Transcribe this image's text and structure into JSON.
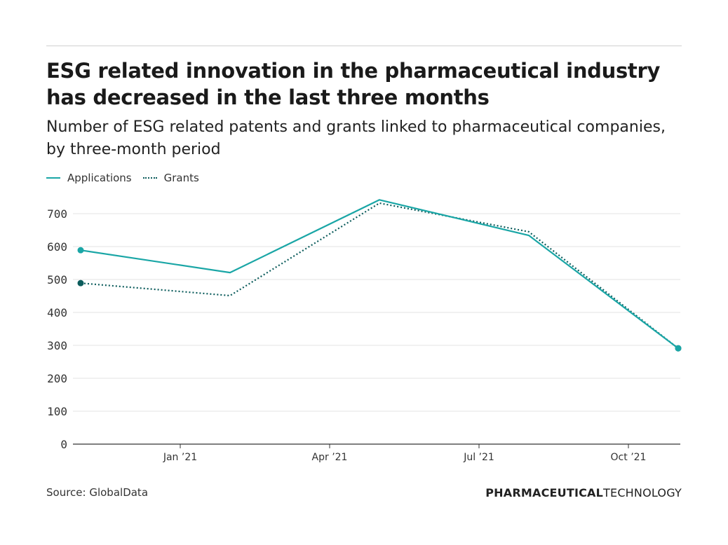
{
  "header": {
    "title": "ESG related innovation in the pharmaceutical industry has decreased in the last three months",
    "subtitle": "Number of ESG related patents and grants linked to pharmaceutical companies, by three-month period"
  },
  "footer": {
    "source": "Source: GlobalData",
    "logo_bold": "PHARMACEUTICAL",
    "logo_light": "TECHNOLOGY"
  },
  "chart_data": {
    "type": "line",
    "title": "ESG related innovation in the pharmaceutical industry has decreased in the last three months",
    "subtitle": "Number of ESG related patents and grants linked to pharmaceutical companies, by three-month period",
    "x": [
      "2020-11",
      "2021-02",
      "2021-05",
      "2021-08",
      "2021-11"
    ],
    "x_tick_labels": [
      "Jan ’21",
      "Apr ’21",
      "Jul ’21",
      "Oct ’21"
    ],
    "x_tick_dates": [
      "2021-01",
      "2021-04",
      "2021-07",
      "2021-10"
    ],
    "y_ticks": [
      0,
      100,
      200,
      300,
      400,
      500,
      600,
      700
    ],
    "ylim": [
      0,
      740
    ],
    "grid": true,
    "legend": "top-left",
    "series": [
      {
        "name": "Applications",
        "values": [
          589,
          521,
          742,
          634,
          291
        ],
        "color": "#1aa6a6",
        "style": "solid"
      },
      {
        "name": "Grants",
        "values": [
          489,
          451,
          732,
          645,
          291
        ],
        "color": "#0c5c5c",
        "style": "dotted"
      }
    ]
  }
}
